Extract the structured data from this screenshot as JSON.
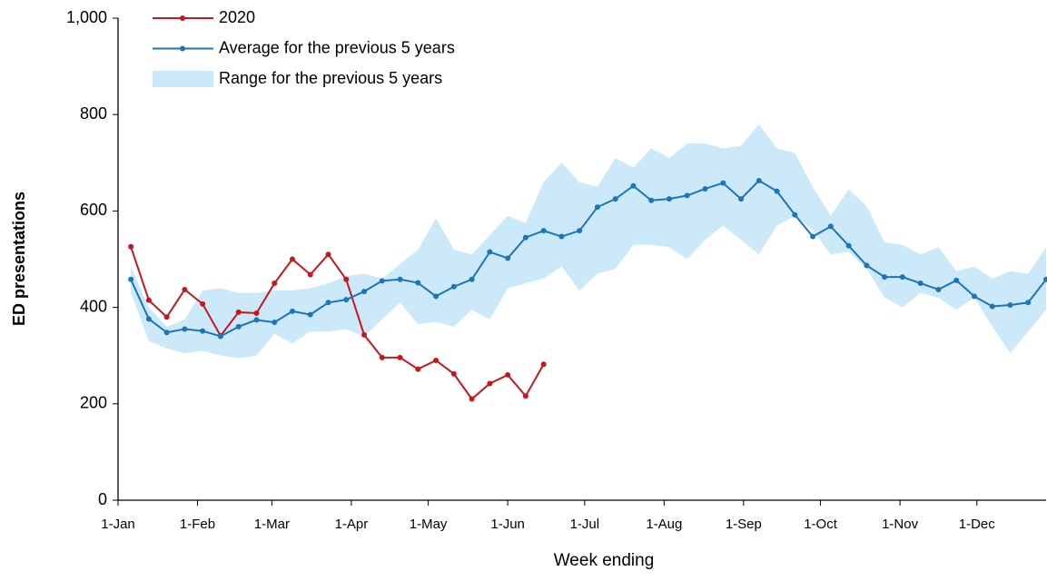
{
  "chart_data": {
    "type": "line",
    "x_label": "Week ending",
    "y_label": "ED presentations",
    "xlim": [
      0,
      362
    ],
    "ylim": [
      0,
      1000
    ],
    "xticks": [
      {
        "value": 0,
        "label": "1-Jan"
      },
      {
        "value": 31,
        "label": "1-Feb"
      },
      {
        "value": 60,
        "label": "1-Mar"
      },
      {
        "value": 91,
        "label": "1-Apr"
      },
      {
        "value": 121,
        "label": "1-May"
      },
      {
        "value": 152,
        "label": "1-Jun"
      },
      {
        "value": 182,
        "label": "1-Jul"
      },
      {
        "value": 213,
        "label": "1-Aug"
      },
      {
        "value": 244,
        "label": "1-Sep"
      },
      {
        "value": 274,
        "label": "1-Oct"
      },
      {
        "value": 305,
        "label": "1-Nov"
      },
      {
        "value": 335,
        "label": "1-Dec"
      }
    ],
    "yticks": [
      0,
      200,
      400,
      600,
      800,
      {
        "value": 1000,
        "label": "1,000"
      }
    ],
    "legend": "top-left",
    "series": [
      {
        "name": "2020",
        "color": "#c8161d",
        "x": [
          5,
          12,
          19,
          26,
          33,
          40,
          47,
          54,
          61,
          68,
          75,
          82,
          89,
          96,
          103,
          110,
          117,
          124,
          131,
          138,
          145,
          152,
          159,
          166
        ],
        "values": [
          526,
          415,
          380,
          437,
          407,
          341,
          390,
          388,
          450,
          500,
          468,
          510,
          458,
          343,
          296,
          296,
          272,
          290,
          262,
          210,
          242,
          260,
          216,
          282
        ]
      },
      {
        "name": "Average for the previous 5 years",
        "color": "#1b75bb",
        "x": [
          5,
          12,
          19,
          26,
          33,
          40,
          47,
          54,
          61,
          68,
          75,
          82,
          89,
          96,
          103,
          110,
          117,
          124,
          131,
          138,
          145,
          152,
          159,
          166,
          173,
          180,
          187,
          194,
          201,
          208,
          215,
          222,
          229,
          236,
          243,
          250,
          257,
          264,
          271,
          278,
          285,
          292,
          299,
          306,
          313,
          320,
          327,
          334,
          341,
          348,
          355,
          362
        ],
        "values": [
          458,
          376,
          348,
          355,
          351,
          340,
          360,
          374,
          369,
          392,
          385,
          410,
          416,
          433,
          455,
          458,
          451,
          423,
          443,
          458,
          515,
          502,
          545,
          559,
          547,
          559,
          608,
          625,
          652,
          622,
          625,
          632,
          646,
          658,
          625,
          663,
          641,
          592,
          547,
          568,
          528,
          487,
          463,
          463,
          450,
          437,
          456,
          423,
          402,
          405,
          410,
          458
        ]
      },
      {
        "name": "Range for the previous 5 years",
        "color": "#cce9fa",
        "type": "band",
        "x": [
          5,
          12,
          19,
          26,
          33,
          40,
          47,
          54,
          61,
          68,
          75,
          82,
          89,
          96,
          103,
          110,
          117,
          124,
          131,
          138,
          145,
          152,
          159,
          166,
          173,
          180,
          187,
          194,
          201,
          208,
          215,
          222,
          229,
          236,
          243,
          250,
          257,
          264,
          271,
          278,
          285,
          292,
          299,
          306,
          313,
          320,
          327,
          334,
          341,
          348,
          355,
          362
        ],
        "low": [
          430,
          330,
          315,
          305,
          310,
          300,
          295,
          300,
          345,
          325,
          350,
          350,
          355,
          340,
          375,
          410,
          365,
          370,
          360,
          395,
          375,
          440,
          450,
          460,
          485,
          435,
          470,
          480,
          530,
          530,
          525,
          500,
          540,
          570,
          540,
          510,
          570,
          590,
          560,
          510,
          515,
          480,
          420,
          400,
          430,
          420,
          395,
          420,
          360,
          305,
          350,
          395
        ],
        "high": [
          485,
          400,
          360,
          375,
          435,
          440,
          430,
          430,
          435,
          435,
          440,
          450,
          465,
          470,
          460,
          490,
          520,
          585,
          520,
          510,
          550,
          590,
          575,
          660,
          700,
          660,
          650,
          710,
          690,
          730,
          710,
          740,
          740,
          730,
          735,
          780,
          730,
          720,
          650,
          590,
          645,
          610,
          535,
          530,
          510,
          525,
          475,
          485,
          460,
          475,
          470,
          525
        ]
      }
    ]
  }
}
